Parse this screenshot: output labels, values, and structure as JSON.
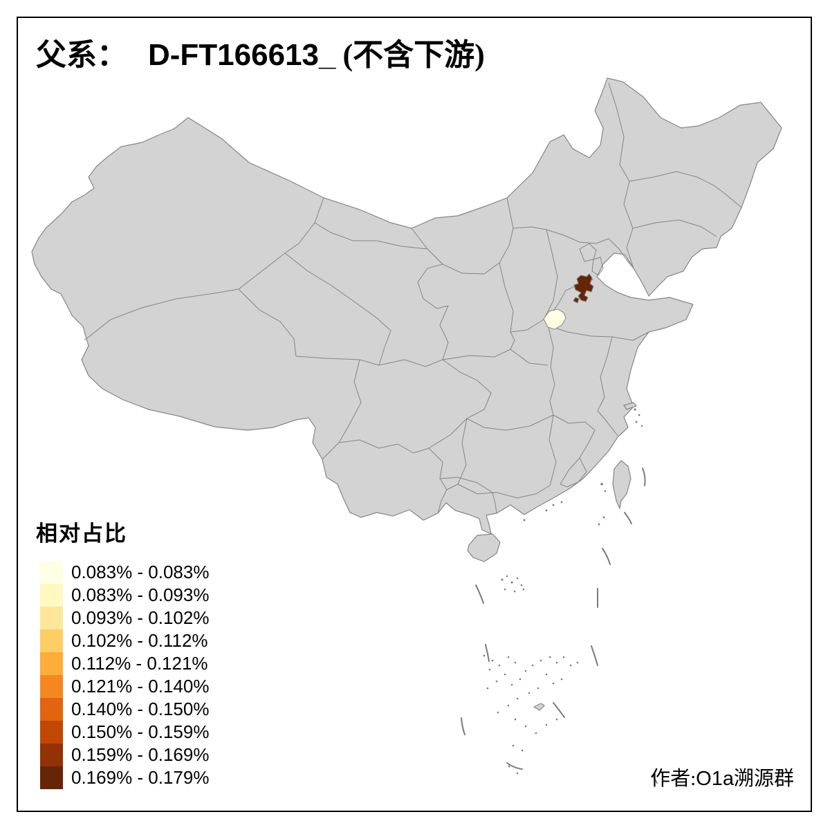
{
  "title": {
    "prefix": "父系：",
    "code": "D-FT166613_",
    "suffix": "(不含下游)"
  },
  "legend": {
    "title": "相对占比",
    "items": [
      {
        "label": "0.083% - 0.083%",
        "color": "#FFFFE5"
      },
      {
        "label": "0.083% - 0.093%",
        "color": "#FFF8C1"
      },
      {
        "label": "0.093% - 0.102%",
        "color": "#FEE79B"
      },
      {
        "label": "0.102% - 0.112%",
        "color": "#FECE65"
      },
      {
        "label": "0.112% - 0.121%",
        "color": "#FEAC3A"
      },
      {
        "label": "0.121% - 0.140%",
        "color": "#F68720"
      },
      {
        "label": "0.140% - 0.150%",
        "color": "#E1640E"
      },
      {
        "label": "0.150% - 0.159%",
        "color": "#C14702"
      },
      {
        "label": "0.159% - 0.169%",
        "color": "#933204"
      },
      {
        "label": "0.169% - 0.179%",
        "color": "#662506"
      }
    ]
  },
  "map": {
    "land_color": "#d3d3d3",
    "border_color": "#848484",
    "background": "#ffffff",
    "frame_color": "#000000",
    "regions": [
      {
        "name": "highlighted-prefecture-dark",
        "color": "#662506"
      },
      {
        "name": "highlighted-prefecture-pale",
        "color": "#FFFFE5"
      }
    ]
  },
  "attribution": {
    "prefix": "作者:",
    "code": "O1a",
    "suffix": "溯源群"
  }
}
